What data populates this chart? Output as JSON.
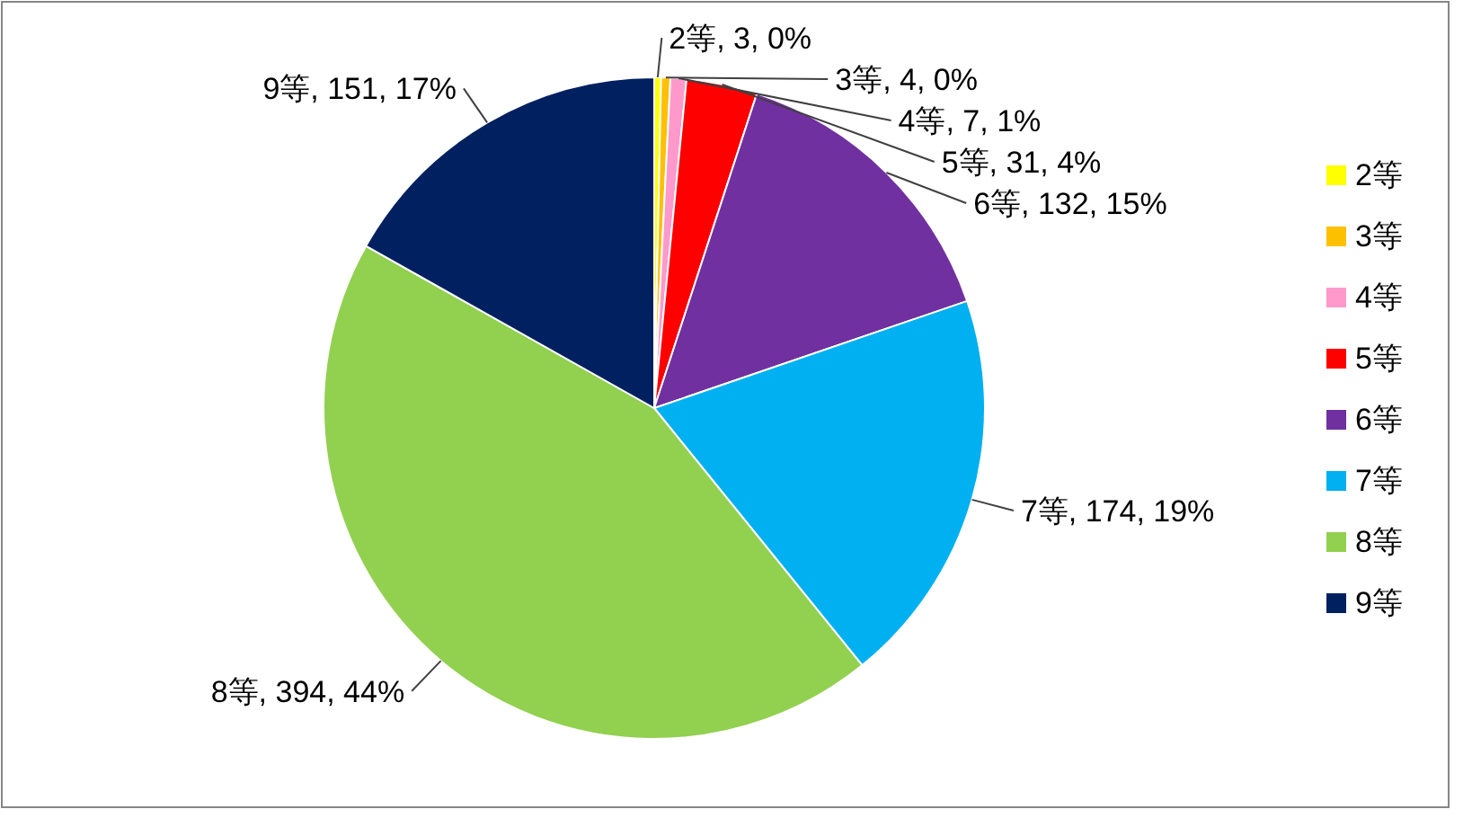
{
  "chart_data": {
    "type": "pie",
    "categories": [
      "2等",
      "3等",
      "4等",
      "5等",
      "6等",
      "7等",
      "8等",
      "9等"
    ],
    "values": [
      3,
      4,
      7,
      31,
      132,
      174,
      394,
      151
    ],
    "colors": [
      "#ffff00",
      "#ffc000",
      "#ff99cc",
      "#ff0000",
      "#7030a0",
      "#00b0f0",
      "#92d050",
      "#002060"
    ],
    "value_labels": [
      "2等, 3, 0%",
      "3等, 4, 0%",
      "4等, 7, 1%",
      "5等, 31, 4%",
      "6等, 132, 15%",
      "7等, 174, 19%",
      "8等, 394, 44%",
      "9等, 151, 17%"
    ],
    "legend": "right"
  }
}
